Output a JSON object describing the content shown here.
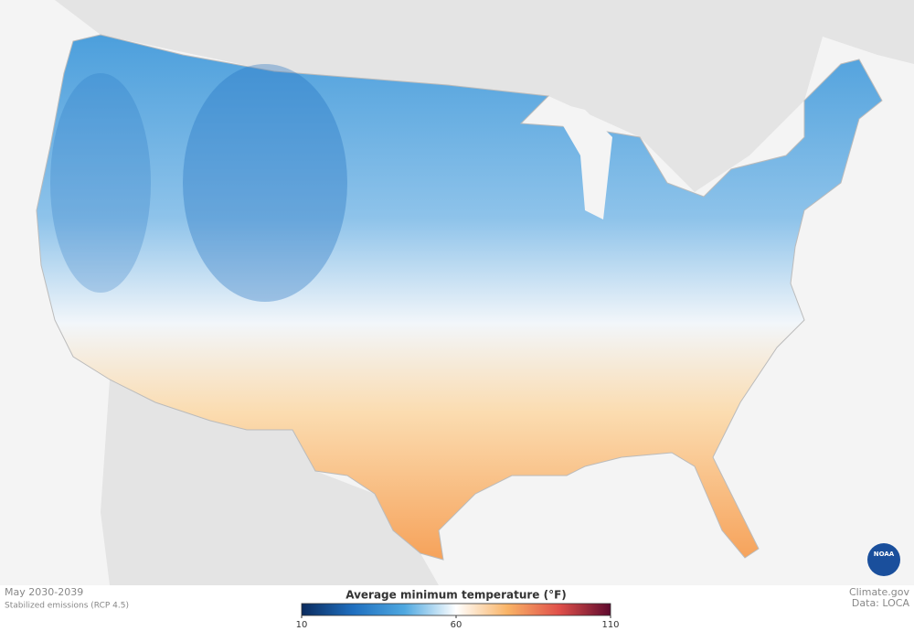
{
  "map": {
    "period": "May 2030-2039",
    "scenario": "Stabilized emissions (RCP 4.5)",
    "logo": "NOAA",
    "credit": "Climate.gov",
    "source": "Data: LOCA"
  },
  "legend": {
    "title": "Average minimum temperature (°F)",
    "range": [
      10,
      110
    ],
    "ticks": [
      10,
      60,
      110
    ],
    "colors": [
      "#0b2b5e",
      "#1f6fbf",
      "#4fa8e0",
      "#ffffff",
      "#f9b366",
      "#e0504a",
      "#5e0a2e"
    ]
  }
}
